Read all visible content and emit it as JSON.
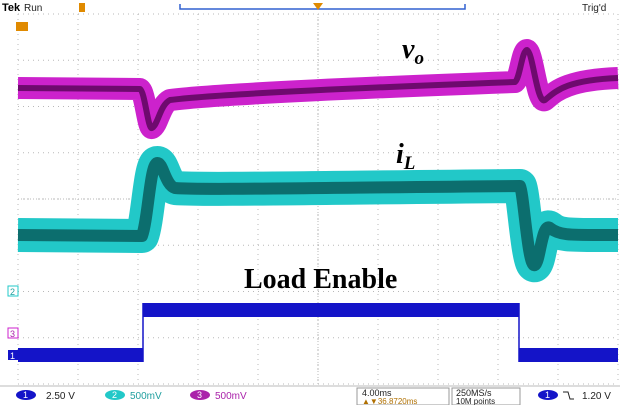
{
  "header": {
    "brand": "Tek",
    "status": "Run",
    "trigger_state": "Trig'd"
  },
  "labels": {
    "vo": {
      "base": "v",
      "sub": "o"
    },
    "il": {
      "base": "i",
      "sub": "L"
    },
    "load_enable": "Load Enable"
  },
  "channel_markers": [
    "2",
    "3",
    "1"
  ],
  "status_bar": {
    "channels": [
      {
        "number": "1",
        "scale": "2.50 V"
      },
      {
        "number": "2",
        "scale": "500mV"
      },
      {
        "number": "3",
        "scale": "500mV"
      }
    ],
    "timebase": "4.00ms",
    "position": "▲▼36.8720ms",
    "sample_rate": "250MS/s",
    "record_length": "10M points",
    "trigger": {
      "source": "1",
      "level": "1.20 V"
    }
  }
}
